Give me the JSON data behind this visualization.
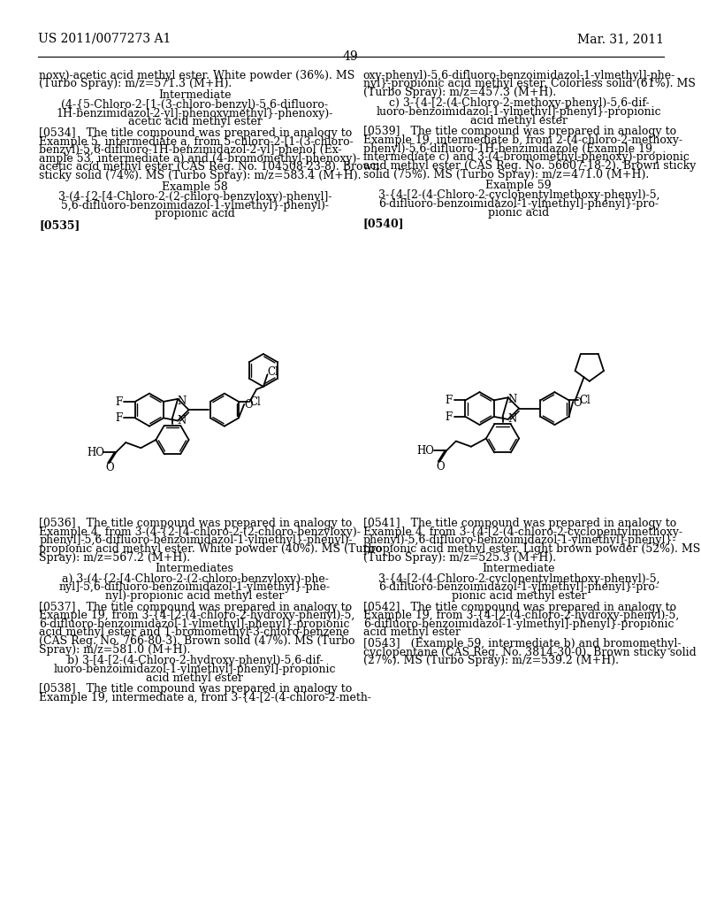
{
  "background_color": "#ffffff",
  "page_number": "49",
  "header_left": "US 2011/0077273 A1",
  "header_right": "Mar. 31, 2011",
  "font_size_body": 9.0,
  "font_size_header": 10,
  "left_column": {
    "intro_text": "noxy)-acetic acid methyl ester. White powder (36%). MS\n(Turbo Spray): m/z=571.3 (M+H).",
    "intermediate_heading": "Intermediate",
    "intermediate_title": "(4-{5-Chloro-2-[1-(3-chloro-benzyl)-5,6-difluoro-\n1H-benzimidazol-2-yl]-phenoxymethyl}-phenoxy)-\nacetic acid methyl ester",
    "para_534": "[0534]   The title compound was prepared in analogy to\nExample 5, intermediate a, from 5-chloro-2-[1-(3-chloro-\nbenzyl)-5,6-difluoro-1H-benzimidazol-2-yl]-phenol (Ex-\nample 53, intermediate a) and (4-bromomethyl-phenoxy)-\nacetic acid methyl ester (CAS Reg. No. 104508-23-8). Brown\nsticky solid (74%). MS (Turbo Spray): m/z=583.4 (M+H).",
    "example58_heading": "Example 58",
    "example58_title": "3-(4-{2-[4-Chloro-2-(2-chloro-benzyloxy)-phenyl]-\n5,6-difluoro-benzoimidazol-1-ylmethyl}-phenyl)-\npropionic acid",
    "para_535": "[0535]",
    "para_536": "[0536]   The title compound was prepared in analogy to\nExample 4, from 3-(4-{2-[4-chloro-2-(2-chloro-benzyloxy)-\nphenyl]-5,6-difluoro-benzoimidazol-1-ylmethyl}-phenyl)-\npropionic acid methyl ester. White powder (40%). MS (Turbo\nSpray): m/z=567.2 (M+H).",
    "intermediates_heading": "Intermediates",
    "intermediates_a_title": "a) 3-(4-{2-[4-Chloro-2-(2-chloro-benzyloxy)-phe-\nnyl]-5,6-difluoro-benzoimidazol-1-ylmethyl}-phe-\nnyl)-propionic acid methyl ester",
    "para_537": "[0537]   The title compound was prepared in analogy to\nExample 19, from 3-{4-[2-(4-chloro-2-hydroxy-phenyl)-5,\n6-difluoro-benzoimidazol-1-ylmethyl]-phenyl}-propionic\nacid methyl ester and 1-bromomethyl-3-chloro-benzene\n(CAS Reg. No. 766-80-3). Brown solid (47%). MS (Turbo\nSpray): m/z=581.0 (M+H).",
    "intermediates_b_title": "b) 3-[4-[2-(4-Chloro-2-hydroxy-phenyl)-5,6-dif-\nluoro-benzoimidazol-1-ylmethyl]-phenyl]-propionic\nacid methyl ester",
    "para_538": "[0538]   The title compound was prepared in analogy to\nExample 19, intermediate a, from 3-{4-[2-(4-chloro-2-meth-"
  },
  "right_column": {
    "intro_text": "oxy-phenyl)-5,6-difluoro-benzoimidazol-1-ylmethyl]-phe-\nnyl}-propionic acid methyl ester. Colorless solid (61%). MS\n(Turbo Spray): m/z=457.3 (M+H).",
    "example_c_title": "c) 3-{4-[2-(4-Chloro-2-methoxy-phenyl)-5,6-dif-\nluoro-benzoimidazol-1-ylmethyl]-phenyl}-propionic\nacid methyl ester",
    "para_539": "[0539]   The title compound was prepared in analogy to\nExample 19, intermediate b, from 2-(4-chloro-2-methoxy-\nphenyl)-5,6-difluoro-1H-benzimidazole (Example 19,\nintermediate c) and 3-(4-bromomethyl-phenoxy)-propionic\nacid methyl ester (CAS Reg. No. 56607-18-2). Brown sticky\nsolid (75%). MS (Turbo Spray): m/z=471.0 (M+H).",
    "example59_heading": "Example 59",
    "example59_title": "3-{4-[2-(4-Chloro-2-cyclopentylmethoxy-phenyl)-5,\n6-difluoro-benzoimidazol-1-ylmethyl]-phenyl}-pro-\npionic acid",
    "para_540": "[0540]",
    "para_541": "[0541]   The title compound was prepared in analogy to\nExample 4, from 3-{4-[2-(4-chloro-2-cyclopentylmethoxy-\nphenyl)-5,6-difluoro-benzoimidazol-1-ylmethyl]-phenyl}-\npropionic acid methyl ester. Light brown powder (52%). MS\n(Turbo Spray): m/z=525.3 (M+H).",
    "intermediate_heading": "Intermediate",
    "intermediate_title": "3-{4-[2-(4-Chloro-2-cyclopentylmethoxy-phenyl)-5,\n6-difluoro-benzoimidazol-1-ylmethyl]-phenyl}-pro-\npionic acid methyl ester",
    "para_542": "[0542]   The title compound was prepared in analogy to\nExample 19, from 3-{4-[2-(4-chloro-2-hydroxy-phenyl)-5,\n6-difluoro-benzoimidazol-1-ylmethyl]-phenyl}-propionic\nacid methyl ester",
    "para_543": "[0543]   (Example 59, intermediate b) and bromomethyl-\ncyclopentane (CAS Reg. No. 3814-30-0). Brown sticky solid\n(27%). MS (Turbo Spray): m/z=539.2 (M+H)."
  }
}
